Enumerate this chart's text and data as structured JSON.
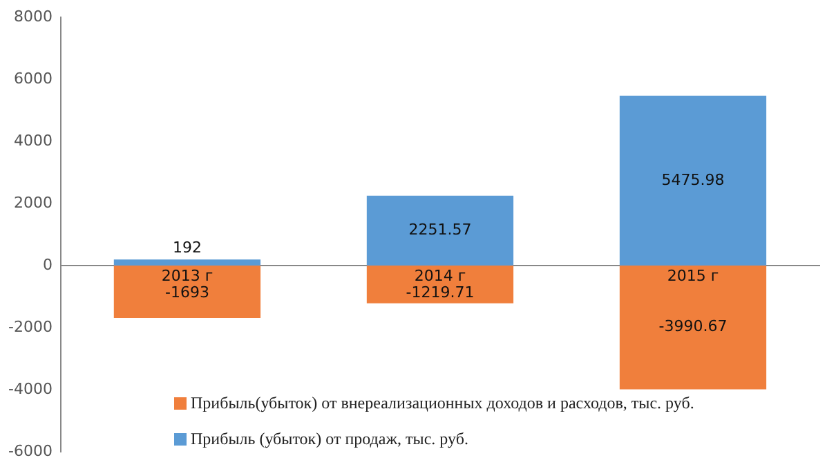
{
  "chart_data": {
    "type": "bar",
    "stacked": true,
    "categories": [
      "2013 г",
      "2014 г",
      "2015 г"
    ],
    "series": [
      {
        "name": "Прибыль(убыток) от внереализационных доходов и расходов, тыс. руб.",
        "color": "#f07f3c",
        "values": [
          -1693,
          -1219.71,
          -3990.67
        ]
      },
      {
        "name": "Прибыль (убыток) от продаж, тыс. руб.",
        "color": "#5b9bd5",
        "values": [
          192,
          2251.57,
          5475.98
        ]
      }
    ],
    "ylim": [
      -6000,
      8000
    ],
    "yticks": [
      -6000,
      -4000,
      -2000,
      0,
      2000,
      4000,
      6000,
      8000
    ],
    "grid": false,
    "data_labels": true,
    "legend": "bottom right"
  }
}
